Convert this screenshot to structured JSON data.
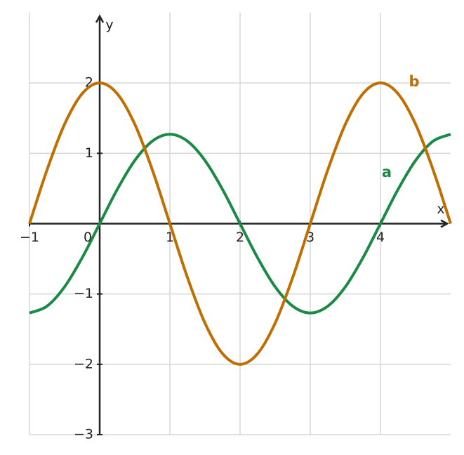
{
  "chart_data": {
    "type": "line",
    "x_label": "x",
    "y_label": "y",
    "x": [
      -1,
      -0.75,
      -0.5,
      -0.25,
      0,
      0.25,
      0.5,
      0.75,
      1,
      1.25,
      1.5,
      1.75,
      2,
      2.25,
      2.5,
      2.75,
      3,
      3.25,
      3.5,
      3.75,
      4,
      4.25,
      4.5,
      4.75,
      5
    ],
    "series": [
      {
        "name": "a",
        "color": "#1a8a45",
        "values": [
          -1.27,
          -1.173,
          -0.898,
          -0.486,
          0,
          0.486,
          0.898,
          1.173,
          1.27,
          1.173,
          0.898,
          0.486,
          0,
          -0.486,
          -0.898,
          -1.173,
          -1.27,
          -1.173,
          -0.898,
          -0.486,
          0,
          0.486,
          0.898,
          1.173,
          1.27
        ]
      },
      {
        "name": "b",
        "color": "#bf6f00",
        "values": [
          0,
          0.765,
          1.414,
          1.848,
          2,
          1.848,
          1.414,
          0.765,
          0,
          -0.765,
          -1.414,
          -1.848,
          -2,
          -1.848,
          -1.414,
          -0.765,
          0,
          0.765,
          1.414,
          1.848,
          2,
          1.848,
          1.414,
          0.765,
          0
        ]
      }
    ],
    "xlim": [
      -1,
      5
    ],
    "ylim": [
      -3,
      3
    ],
    "xticks": [
      {
        "value": -1,
        "label": "−1"
      },
      0,
      1,
      2,
      3,
      4
    ],
    "yticks": [
      {
        "value": -3,
        "label": "−3"
      },
      {
        "value": -2,
        "label": "−2"
      },
      {
        "value": -1,
        "label": "−1"
      },
      1,
      2
    ],
    "grid": true
  }
}
